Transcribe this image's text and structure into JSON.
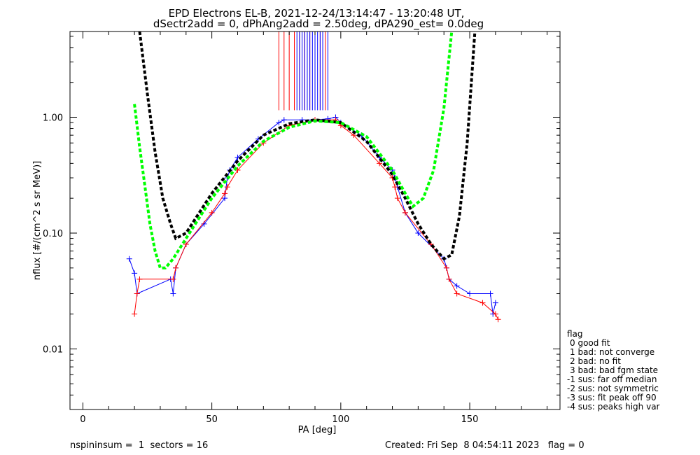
{
  "chart_data": {
    "type": "scatter",
    "title": "EPD Electrons EL-B, 2021-12-24/13:14:47 - 13:20:48 UT,",
    "subtitle": "dSectr2add = 0, dPhAng2add = 2.50deg, dPA290_est=   0.0deg",
    "xlabel": "PA [deg]",
    "ylabel": "nflux [#/(cm^2 s sr MeV)]",
    "xlim": [
      -5,
      185
    ],
    "ylim": [
      0.003,
      5.5
    ],
    "yscale": "log",
    "x_ticks": [
      "0",
      "50",
      "100",
      "150"
    ],
    "x_tick_values": [
      0,
      50,
      100,
      150
    ],
    "y_ticks": [
      "0.01",
      "0.10",
      "1.00"
    ],
    "y_tick_values": [
      0.01,
      0.1,
      1.0
    ],
    "grid": false,
    "series": [
      {
        "color": "#0000ff",
        "style": "lines+plus",
        "x": [
          18,
          20,
          21,
          34,
          35,
          36,
          40,
          47,
          55,
          56,
          57,
          60,
          68,
          76,
          78,
          85,
          90,
          95,
          98,
          100,
          108,
          115,
          120,
          121,
          122,
          125,
          130,
          140,
          141,
          142,
          145,
          150,
          158,
          159,
          160
        ],
        "y": [
          0.06,
          0.045,
          0.03,
          0.04,
          0.03,
          0.05,
          0.08,
          0.12,
          0.2,
          0.3,
          0.35,
          0.45,
          0.65,
          0.9,
          0.95,
          0.95,
          0.95,
          0.97,
          1.0,
          0.9,
          0.7,
          0.45,
          0.35,
          0.3,
          0.25,
          0.15,
          0.1,
          0.06,
          0.05,
          0.04,
          0.035,
          0.03,
          0.03,
          0.02,
          0.025
        ]
      },
      {
        "color": "#ff0000",
        "style": "lines+plus",
        "x": [
          20,
          21,
          22,
          35,
          36,
          40,
          50,
          55,
          56,
          60,
          70,
          80,
          90,
          98,
          100,
          105,
          115,
          120,
          121,
          122,
          125,
          135,
          141,
          142,
          145,
          155,
          160,
          161
        ],
        "y": [
          0.02,
          0.03,
          0.04,
          0.04,
          0.05,
          0.08,
          0.15,
          0.22,
          0.25,
          0.35,
          0.6,
          0.85,
          0.95,
          0.95,
          0.85,
          0.7,
          0.4,
          0.3,
          0.25,
          0.2,
          0.15,
          0.08,
          0.05,
          0.04,
          0.03,
          0.025,
          0.02,
          0.018
        ]
      },
      {
        "color": "#ff0000",
        "style": "vertical-lines",
        "x": [
          76,
          78,
          80,
          82,
          84,
          86,
          88,
          90,
          92,
          94
        ],
        "y_from": [
          1.15,
          1.15,
          1.15,
          1.15,
          1.15,
          1.15,
          1.15,
          1.15,
          1.15,
          1.15
        ],
        "y_to": [
          5.5,
          5.5,
          5.5,
          5.5,
          5.5,
          5.5,
          5.5,
          5.5,
          5.5,
          5.5
        ]
      },
      {
        "color": "#0000ff",
        "style": "vertical-lines",
        "x": [
          83,
          84,
          85,
          86,
          87,
          88,
          89,
          90,
          91,
          92,
          93,
          95
        ],
        "y_from": [
          1.15,
          1.15,
          1.15,
          1.15,
          1.15,
          1.15,
          1.15,
          1.15,
          1.15,
          1.15,
          1.15,
          1.15
        ],
        "y_to": [
          5.5,
          5.5,
          5.5,
          5.5,
          5.5,
          5.5,
          5.5,
          5.5,
          5.5,
          5.5,
          5.5,
          5.5
        ]
      },
      {
        "color": "#000000",
        "style": "dashed-thick",
        "x": [
          22,
          25,
          28,
          31,
          34,
          36,
          40,
          50,
          60,
          70,
          80,
          90,
          100,
          110,
          120,
          125,
          130,
          135,
          140,
          143,
          146,
          149,
          152
        ],
        "y": [
          5.5,
          1.6,
          0.5,
          0.2,
          0.12,
          0.09,
          0.1,
          0.22,
          0.42,
          0.7,
          0.88,
          0.95,
          0.9,
          0.62,
          0.32,
          0.2,
          0.12,
          0.08,
          0.06,
          0.065,
          0.14,
          0.6,
          5.5
        ]
      },
      {
        "color": "#00ff00",
        "style": "dashed-thick",
        "x": [
          20,
          22,
          24,
          26,
          28,
          30,
          32,
          35,
          40,
          50,
          60,
          70,
          80,
          90,
          100,
          110,
          120,
          125,
          128,
          132,
          136,
          140,
          143
        ],
        "y": [
          1.3,
          0.55,
          0.26,
          0.12,
          0.07,
          0.05,
          0.05,
          0.06,
          0.09,
          0.2,
          0.38,
          0.62,
          0.82,
          0.93,
          0.9,
          0.68,
          0.35,
          0.22,
          0.17,
          0.2,
          0.35,
          1.2,
          5.5
        ]
      }
    ]
  },
  "legend": {
    "title": "flag",
    "items": [
      "0 good fit",
      "1 bad: not converge",
      "2 bad: no fit",
      "3 bad: bad fgm state",
      "-1 sus: far off median",
      "-2 sus: not symmetric",
      "-3 sus: fit peak off 90",
      "-4 sus: peaks high var"
    ]
  },
  "footer": {
    "left": "nspininsum =  1  sectors = 16",
    "right": "Created: Fri Sep  8 04:54:11 2023   flag = 0"
  }
}
